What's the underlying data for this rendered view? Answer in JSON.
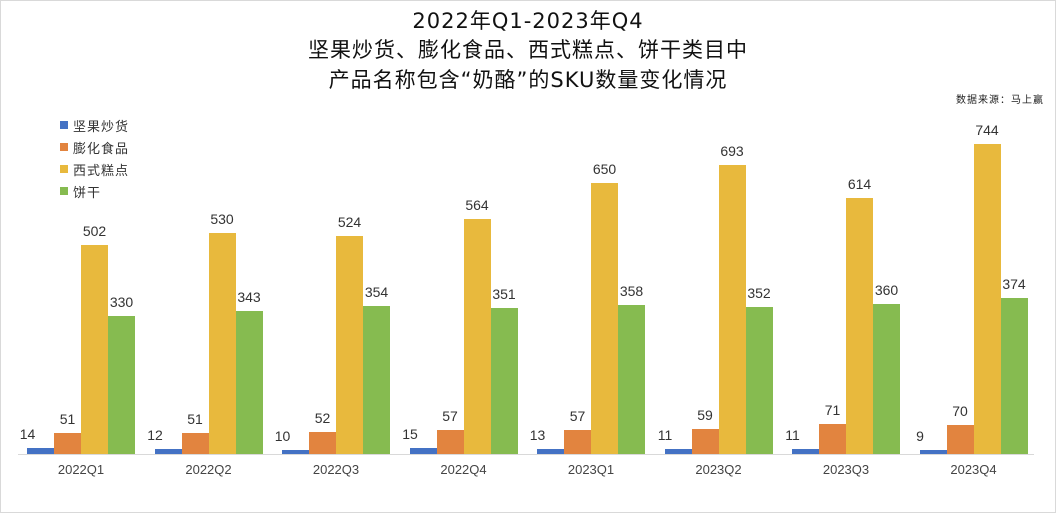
{
  "chart_data": {
    "type": "bar",
    "title": "2022年Q1-2023年Q4",
    "subtitle_lines": [
      "坚果炒货、膨化食品、西式糕点、饼干类目中",
      "产品名称包含“奶酪”的SKU数量变化情况"
    ],
    "source": "数据来源：马上赢",
    "xlabel": "",
    "ylabel": "",
    "grid": false,
    "legend_position": "top-left",
    "categories": [
      "2022Q1",
      "2022Q2",
      "2022Q3",
      "2022Q4",
      "2023Q1",
      "2023Q2",
      "2023Q3",
      "2023Q4"
    ],
    "series": [
      {
        "name": "坚果炒货",
        "color": "#4472c4",
        "values": [
          14,
          12,
          10,
          15,
          13,
          11,
          11,
          9
        ]
      },
      {
        "name": "膨化食品",
        "color": "#e2843f",
        "values": [
          51,
          51,
          52,
          57,
          57,
          59,
          71,
          70
        ]
      },
      {
        "name": "西式糕点",
        "color": "#e8b93d",
        "values": [
          502,
          530,
          524,
          564,
          650,
          693,
          614,
          744
        ]
      },
      {
        "name": "饼干",
        "color": "#86bb50",
        "values": [
          330,
          343,
          354,
          351,
          358,
          352,
          360,
          374
        ]
      }
    ],
    "ylim": [
      0,
      744
    ]
  },
  "header": {
    "title_line1": "2022年Q1-2023年Q4",
    "title_line2": "坚果炒货、膨化食品、西式糕点、饼干类目中",
    "title_line3": "产品名称包含“奶酪”的SKU数量变化情况",
    "source": "数据来源：马上赢"
  },
  "legend": [
    {
      "label": "坚果炒货",
      "color": "#4472c4"
    },
    {
      "label": "膨化食品",
      "color": "#e2843f"
    },
    {
      "label": "西式糕点",
      "color": "#e8b93d"
    },
    {
      "label": "饼干",
      "color": "#86bb50"
    }
  ]
}
